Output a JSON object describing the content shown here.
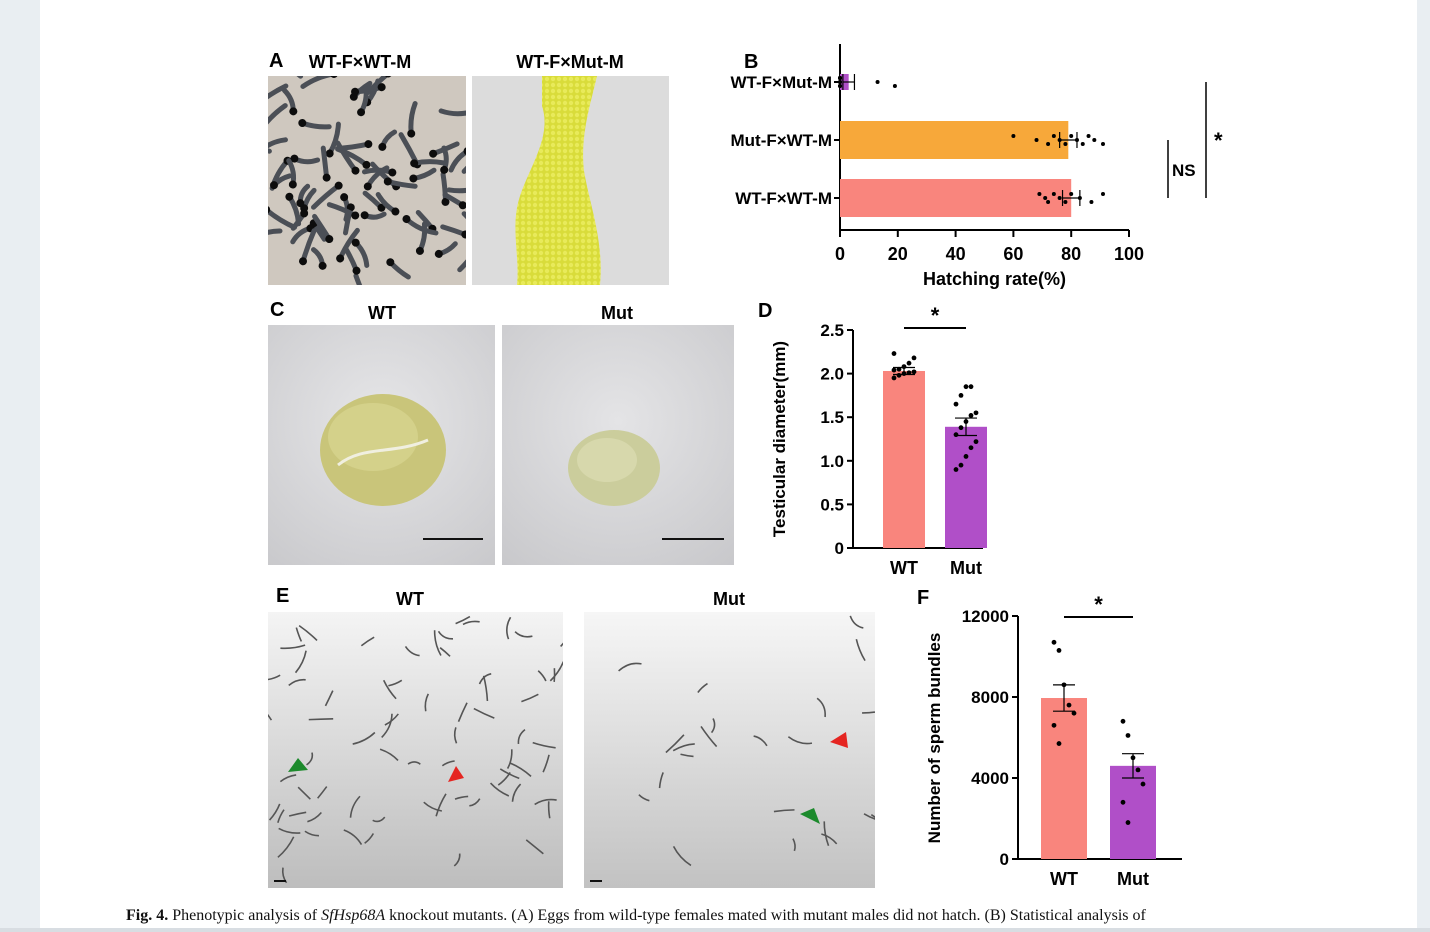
{
  "panels": {
    "A": {
      "letter": "A",
      "images": [
        {
          "title": "WT-F×WT-M",
          "content": "hatched larvae"
        },
        {
          "title": "WT-F×Mut-M",
          "content": "unhatched yellow eggs"
        }
      ]
    },
    "C": {
      "letter": "C",
      "images": [
        {
          "title": "WT",
          "content": "large testis"
        },
        {
          "title": "Mut",
          "content": "small testis"
        }
      ]
    },
    "E": {
      "letter": "E",
      "images": [
        {
          "title": "WT",
          "content": "many sperm bundles"
        },
        {
          "title": "Mut",
          "content": "few sperm bundles"
        }
      ]
    }
  },
  "chart_data": [
    {
      "id": "B",
      "letter": "B",
      "type": "bar",
      "orientation": "horizontal",
      "categories": [
        "WT-F×Mut-M",
        "Mut-F×WT-M",
        "WT-F×WT-M"
      ],
      "values": [
        3,
        79,
        80
      ],
      "errors": [
        2,
        3,
        3
      ],
      "points": [
        [
          0,
          0,
          0,
          0,
          0,
          0,
          0,
          13,
          19
        ],
        [
          60,
          68,
          72,
          74,
          76,
          78,
          80,
          82,
          84,
          86,
          88,
          91
        ],
        [
          69,
          71,
          72,
          74,
          76,
          78,
          80,
          83,
          87,
          91
        ]
      ],
      "colors": [
        "#b04fc8",
        "#f7a83a",
        "#f9857d"
      ],
      "xlabel": "Hatching rate(%)",
      "xlim": [
        0,
        100
      ],
      "xticks": [
        "0",
        "20",
        "40",
        "60",
        "80",
        "100"
      ],
      "annotations": [
        {
          "text": "NS"
        },
        {
          "text": "*"
        }
      ]
    },
    {
      "id": "D",
      "letter": "D",
      "type": "bar",
      "categories": [
        "WT",
        "Mut"
      ],
      "values": [
        2.03,
        1.39
      ],
      "errors": [
        0.04,
        0.1
      ],
      "points": [
        [
          1.95,
          1.98,
          2.0,
          2.01,
          2.02,
          2.04,
          2.05,
          2.08,
          2.12,
          2.18,
          2.23
        ],
        [
          0.9,
          0.95,
          1.05,
          1.15,
          1.22,
          1.3,
          1.38,
          1.45,
          1.52,
          1.55,
          1.65,
          1.75,
          1.85,
          1.85
        ]
      ],
      "colors": [
        "#f9857d",
        "#b04fc8"
      ],
      "ylabel": "Testicular diameter(mm)",
      "ylim": [
        0,
        2.5
      ],
      "yticks": [
        "0",
        "0.5",
        "1.0",
        "1.5",
        "2.0",
        "2.5"
      ],
      "annotations": [
        {
          "text": "*"
        }
      ]
    },
    {
      "id": "F",
      "letter": "F",
      "type": "bar",
      "categories": [
        "WT",
        "Mut"
      ],
      "values": [
        7950,
        4600
      ],
      "errors": [
        650,
        600
      ],
      "points": [
        [
          10700,
          10300,
          8600,
          7600,
          7200,
          6600,
          5700
        ],
        [
          6800,
          6100,
          5000,
          4400,
          3700,
          2800,
          1800
        ]
      ],
      "colors": [
        "#f9857d",
        "#b04fc8"
      ],
      "ylabel": "Number of sperm bundles",
      "ylim": [
        0,
        12000
      ],
      "yticks": [
        "0",
        "4000",
        "8000",
        "12000"
      ],
      "annotations": [
        {
          "text": "*"
        }
      ]
    }
  ],
  "caption": {
    "label": "Fig. 4.",
    "text_before": " Phenotypic analysis of ",
    "gene": "SfHsp68A",
    "text_after": " knockout mutants. (A) Eggs from wild-type females mated with mutant males did not hatch. (B) Statistical analysis of"
  }
}
